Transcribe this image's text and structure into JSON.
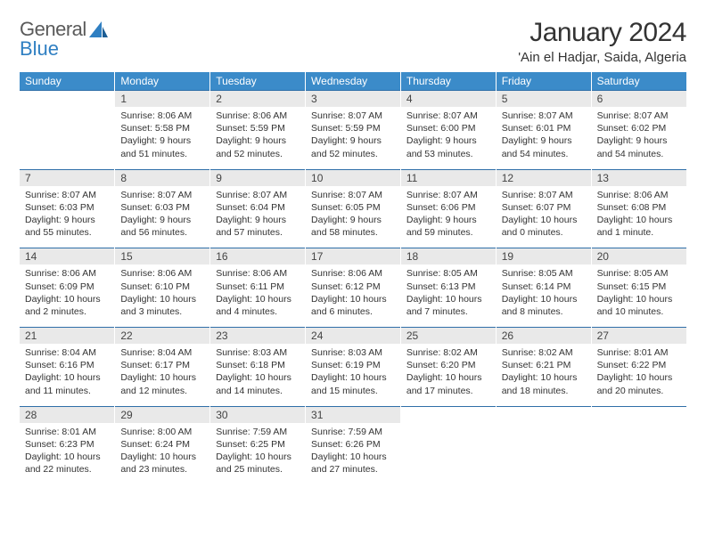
{
  "logo": {
    "word1": "General",
    "word2": "Blue"
  },
  "title": "January 2024",
  "location": "'Ain el Hadjar, Saida, Algeria",
  "colors": {
    "header_bg": "#3b8bc9",
    "header_text": "#ffffff",
    "daynum_bg": "#e9e9e9",
    "daynum_text": "#444444",
    "border_top": "#2f6fa8",
    "body_text": "#333333",
    "logo_grey": "#5a5a5a",
    "logo_blue": "#2f7fc2",
    "background": "#ffffff"
  },
  "typography": {
    "title_fontsize": 30,
    "location_fontsize": 15,
    "weekday_fontsize": 12,
    "daynum_fontsize": 12,
    "cell_fontsize": 10.5,
    "logo_fontsize": 22
  },
  "weekdays": [
    "Sunday",
    "Monday",
    "Tuesday",
    "Wednesday",
    "Thursday",
    "Friday",
    "Saturday"
  ],
  "weeks": [
    {
      "nums": [
        "",
        "1",
        "2",
        "3",
        "4",
        "5",
        "6"
      ],
      "days": [
        null,
        {
          "sunrise": "8:06 AM",
          "sunset": "5:58 PM",
          "daylight": "9 hours and 51 minutes."
        },
        {
          "sunrise": "8:06 AM",
          "sunset": "5:59 PM",
          "daylight": "9 hours and 52 minutes."
        },
        {
          "sunrise": "8:07 AM",
          "sunset": "5:59 PM",
          "daylight": "9 hours and 52 minutes."
        },
        {
          "sunrise": "8:07 AM",
          "sunset": "6:00 PM",
          "daylight": "9 hours and 53 minutes."
        },
        {
          "sunrise": "8:07 AM",
          "sunset": "6:01 PM",
          "daylight": "9 hours and 54 minutes."
        },
        {
          "sunrise": "8:07 AM",
          "sunset": "6:02 PM",
          "daylight": "9 hours and 54 minutes."
        }
      ]
    },
    {
      "nums": [
        "7",
        "8",
        "9",
        "10",
        "11",
        "12",
        "13"
      ],
      "days": [
        {
          "sunrise": "8:07 AM",
          "sunset": "6:03 PM",
          "daylight": "9 hours and 55 minutes."
        },
        {
          "sunrise": "8:07 AM",
          "sunset": "6:03 PM",
          "daylight": "9 hours and 56 minutes."
        },
        {
          "sunrise": "8:07 AM",
          "sunset": "6:04 PM",
          "daylight": "9 hours and 57 minutes."
        },
        {
          "sunrise": "8:07 AM",
          "sunset": "6:05 PM",
          "daylight": "9 hours and 58 minutes."
        },
        {
          "sunrise": "8:07 AM",
          "sunset": "6:06 PM",
          "daylight": "9 hours and 59 minutes."
        },
        {
          "sunrise": "8:07 AM",
          "sunset": "6:07 PM",
          "daylight": "10 hours and 0 minutes."
        },
        {
          "sunrise": "8:06 AM",
          "sunset": "6:08 PM",
          "daylight": "10 hours and 1 minute."
        }
      ]
    },
    {
      "nums": [
        "14",
        "15",
        "16",
        "17",
        "18",
        "19",
        "20"
      ],
      "days": [
        {
          "sunrise": "8:06 AM",
          "sunset": "6:09 PM",
          "daylight": "10 hours and 2 minutes."
        },
        {
          "sunrise": "8:06 AM",
          "sunset": "6:10 PM",
          "daylight": "10 hours and 3 minutes."
        },
        {
          "sunrise": "8:06 AM",
          "sunset": "6:11 PM",
          "daylight": "10 hours and 4 minutes."
        },
        {
          "sunrise": "8:06 AM",
          "sunset": "6:12 PM",
          "daylight": "10 hours and 6 minutes."
        },
        {
          "sunrise": "8:05 AM",
          "sunset": "6:13 PM",
          "daylight": "10 hours and 7 minutes."
        },
        {
          "sunrise": "8:05 AM",
          "sunset": "6:14 PM",
          "daylight": "10 hours and 8 minutes."
        },
        {
          "sunrise": "8:05 AM",
          "sunset": "6:15 PM",
          "daylight": "10 hours and 10 minutes."
        }
      ]
    },
    {
      "nums": [
        "21",
        "22",
        "23",
        "24",
        "25",
        "26",
        "27"
      ],
      "days": [
        {
          "sunrise": "8:04 AM",
          "sunset": "6:16 PM",
          "daylight": "10 hours and 11 minutes."
        },
        {
          "sunrise": "8:04 AM",
          "sunset": "6:17 PM",
          "daylight": "10 hours and 12 minutes."
        },
        {
          "sunrise": "8:03 AM",
          "sunset": "6:18 PM",
          "daylight": "10 hours and 14 minutes."
        },
        {
          "sunrise": "8:03 AM",
          "sunset": "6:19 PM",
          "daylight": "10 hours and 15 minutes."
        },
        {
          "sunrise": "8:02 AM",
          "sunset": "6:20 PM",
          "daylight": "10 hours and 17 minutes."
        },
        {
          "sunrise": "8:02 AM",
          "sunset": "6:21 PM",
          "daylight": "10 hours and 18 minutes."
        },
        {
          "sunrise": "8:01 AM",
          "sunset": "6:22 PM",
          "daylight": "10 hours and 20 minutes."
        }
      ]
    },
    {
      "nums": [
        "28",
        "29",
        "30",
        "31",
        "",
        "",
        ""
      ],
      "days": [
        {
          "sunrise": "8:01 AM",
          "sunset": "6:23 PM",
          "daylight": "10 hours and 22 minutes."
        },
        {
          "sunrise": "8:00 AM",
          "sunset": "6:24 PM",
          "daylight": "10 hours and 23 minutes."
        },
        {
          "sunrise": "7:59 AM",
          "sunset": "6:25 PM",
          "daylight": "10 hours and 25 minutes."
        },
        {
          "sunrise": "7:59 AM",
          "sunset": "6:26 PM",
          "daylight": "10 hours and 27 minutes."
        },
        null,
        null,
        null
      ]
    }
  ],
  "labels": {
    "sunrise_prefix": "Sunrise: ",
    "sunset_prefix": "Sunset: ",
    "daylight_prefix": "Daylight: "
  }
}
